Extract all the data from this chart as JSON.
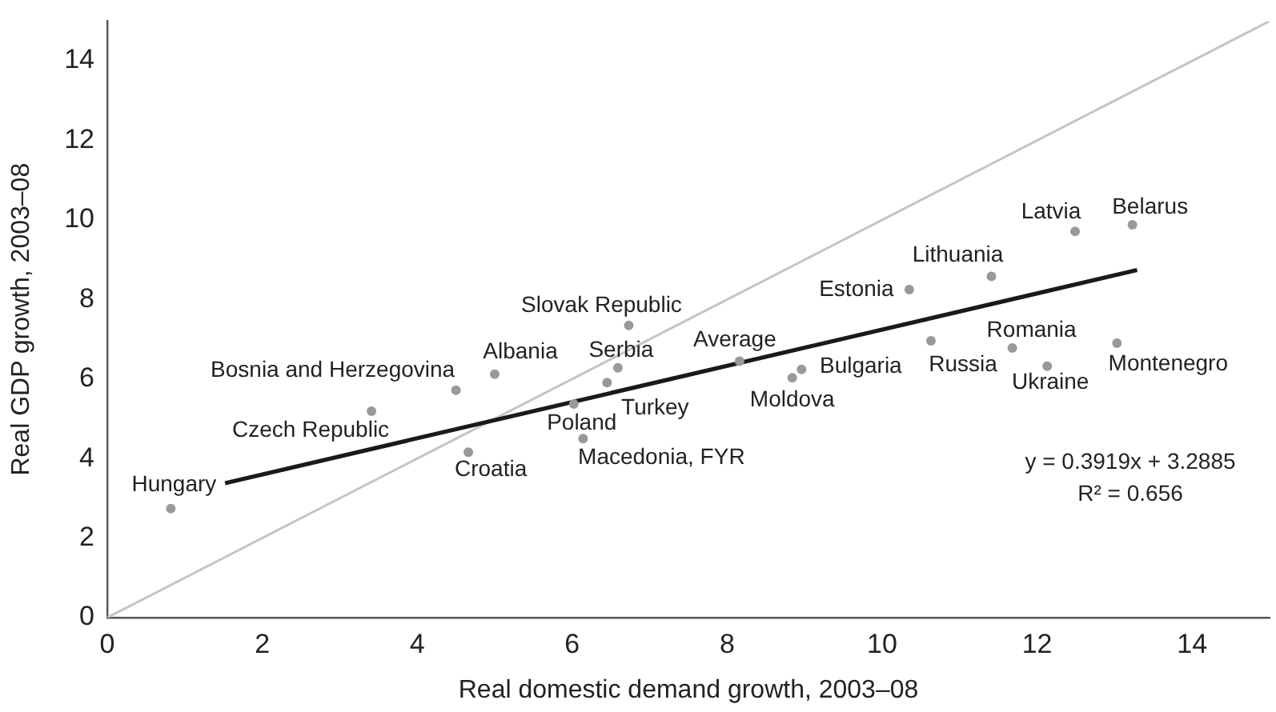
{
  "chart_data": {
    "type": "scatter",
    "xlabel": "Real domestic demand growth, 2003–08",
    "ylabel": "Real GDP growth, 2003–08",
    "xlim": [
      0,
      15
    ],
    "ylim": [
      0,
      15
    ],
    "xticks": [
      0,
      2,
      4,
      6,
      8,
      10,
      12,
      14
    ],
    "yticks": [
      0,
      2,
      4,
      6,
      8,
      10,
      12,
      14
    ],
    "series": [
      {
        "marker": "circle",
        "color": "#999999",
        "x": [
          0.82,
          3.41,
          4.5,
          5.0,
          4.66,
          6.02,
          6.14,
          6.73,
          6.59,
          6.45,
          8.16,
          8.84,
          8.96,
          10.35,
          10.63,
          11.41,
          11.68,
          12.13,
          12.49,
          13.23,
          13.03
        ],
        "values": [
          2.74,
          5.19,
          5.72,
          6.12,
          4.16,
          5.37,
          4.5,
          7.35,
          6.28,
          5.91,
          6.45,
          6.03,
          6.24,
          8.25,
          6.96,
          8.58,
          6.78,
          6.32,
          9.71,
          9.88,
          6.9
        ]
      },
      {
        "type": "line",
        "marker": "none",
        "color": "#1a1a1a",
        "x": [
          1.52,
          13.29
        ],
        "values": [
          3.38,
          8.74
        ]
      },
      {
        "type": "line",
        "marker": "none",
        "color": "#c4c4c4",
        "x": [
          0,
          15
        ],
        "values": [
          0,
          15
        ]
      }
    ],
    "annotations": [
      {
        "text": "Hungary",
        "x": 0.82,
        "y": 2.74
      },
      {
        "text": "Czech Republic",
        "x": 3.41,
        "y": 5.19
      },
      {
        "text": "Bosnia and Herzegovina",
        "x": 4.5,
        "y": 5.72
      },
      {
        "text": "Albania",
        "x": 5.0,
        "y": 6.12
      },
      {
        "text": "Croatia",
        "x": 4.66,
        "y": 4.16
      },
      {
        "text": "Poland",
        "x": 6.02,
        "y": 5.37
      },
      {
        "text": "Macedonia, FYR",
        "x": 6.14,
        "y": 4.5
      },
      {
        "text": "Slovak Republic",
        "x": 6.73,
        "y": 7.35
      },
      {
        "text": "Serbia",
        "x": 6.59,
        "y": 6.28
      },
      {
        "text": "Turkey",
        "x": 6.45,
        "y": 5.91
      },
      {
        "text": "Average",
        "x": 8.16,
        "y": 6.45
      },
      {
        "text": "Moldova",
        "x": 8.84,
        "y": 6.03
      },
      {
        "text": "Bulgaria",
        "x": 8.96,
        "y": 6.24
      },
      {
        "text": "Estonia",
        "x": 10.35,
        "y": 8.25
      },
      {
        "text": "Russia",
        "x": 10.63,
        "y": 6.96
      },
      {
        "text": "Lithuania",
        "x": 11.41,
        "y": 8.58
      },
      {
        "text": "Romania",
        "x": 11.68,
        "y": 6.78
      },
      {
        "text": "Ukraine",
        "x": 12.13,
        "y": 6.32
      },
      {
        "text": "Latvia",
        "x": 12.49,
        "y": 9.71
      },
      {
        "text": "Belarus",
        "x": 13.23,
        "y": 9.88
      },
      {
        "text": "Montenegro",
        "x": 13.03,
        "y": 6.9
      },
      "y = 0.3919x + 3.2885",
      "R² = 0.656"
    ]
  }
}
